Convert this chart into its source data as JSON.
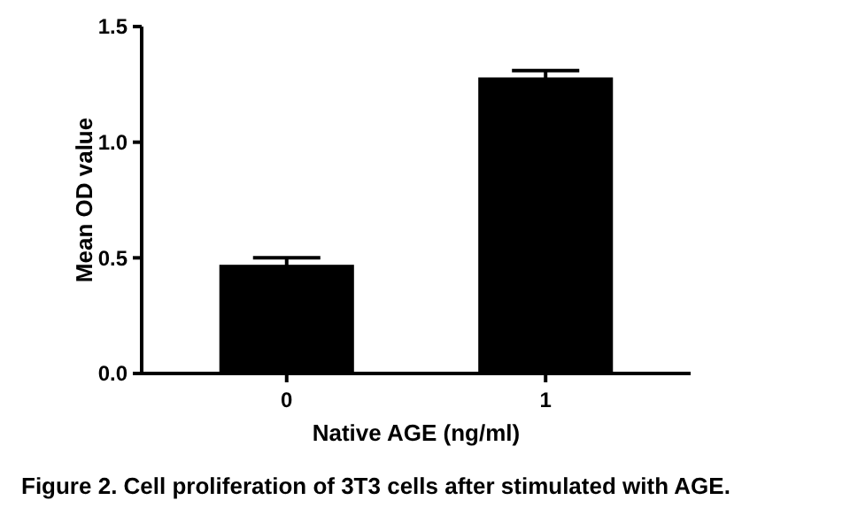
{
  "chart_data": {
    "type": "bar",
    "title": "Figure 2. Cell proliferation of 3T3 cells after stimulated with AGE.",
    "xlabel": "Native AGE (ng/ml)",
    "ylabel": "Mean OD value",
    "categories": [
      "0",
      "1"
    ],
    "values": [
      0.47,
      1.28
    ],
    "errors": [
      0.03,
      0.03
    ],
    "color": "#000000",
    "ylim": [
      0,
      1.5
    ],
    "yticks": [
      {
        "value": 0,
        "label": "0.0"
      },
      {
        "value": 0.5,
        "label": "0.5"
      },
      {
        "value": 1,
        "label": "1.0"
      },
      {
        "value": 1.5,
        "label": "1.5"
      }
    ]
  }
}
